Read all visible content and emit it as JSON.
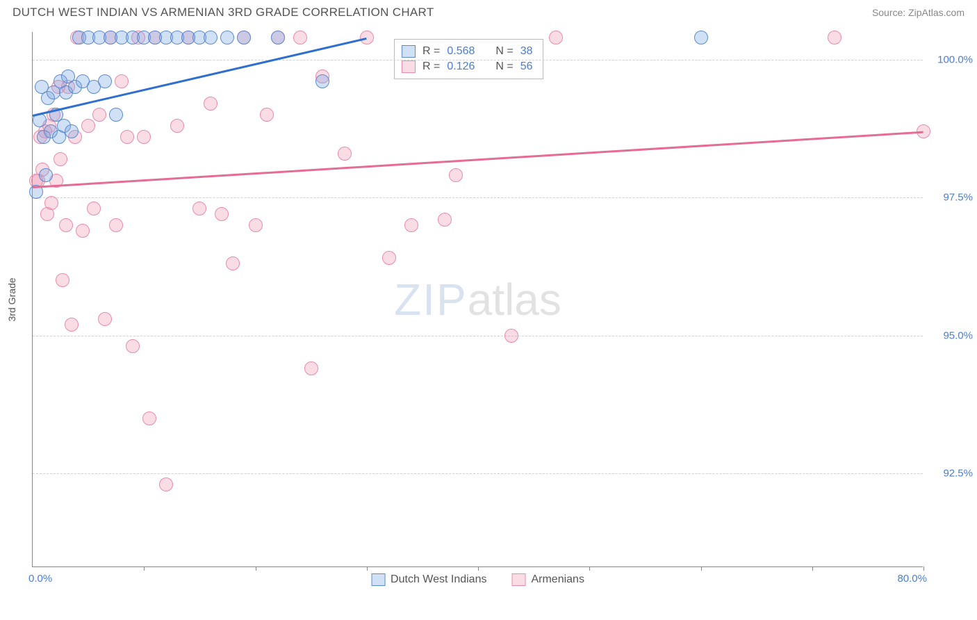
{
  "title": "DUTCH WEST INDIAN VS ARMENIAN 3RD GRADE CORRELATION CHART",
  "source": "Source: ZipAtlas.com",
  "watermark": {
    "part1": "ZIP",
    "part2": "atlas"
  },
  "ylabel": "3rd Grade",
  "chart": {
    "type": "scatter",
    "background_color": "#ffffff",
    "grid_color": "#d0d0d0",
    "axis_color": "#888888",
    "tick_label_color": "#4a7dd4",
    "xlim": [
      0,
      80
    ],
    "ylim": [
      90.8,
      100.5
    ],
    "x_tick_positions": [
      0,
      10,
      20,
      30,
      40,
      50,
      60,
      70,
      80
    ],
    "y_grid": [
      {
        "v": 100.0,
        "label": "100.0%"
      },
      {
        "v": 97.5,
        "label": "97.5%"
      },
      {
        "v": 95.0,
        "label": "95.0%"
      },
      {
        "v": 92.5,
        "label": "92.5%"
      }
    ],
    "x_min_label": "0.0%",
    "x_max_label": "80.0%",
    "marker_radius": 10,
    "marker_border_width": 1.2,
    "series": [
      {
        "name": "Dutch West Indians",
        "fill": "rgba(120,165,225,0.35)",
        "stroke": "#5b8bd0",
        "line_color": "#2f6fd0",
        "r_value": "0.568",
        "n_value": "38",
        "trend": {
          "x1": 0,
          "y1": 99.0,
          "x2": 30,
          "y2": 100.4
        },
        "points": [
          [
            0.3,
            97.6
          ],
          [
            0.6,
            98.9
          ],
          [
            0.8,
            99.5
          ],
          [
            1.0,
            98.6
          ],
          [
            1.2,
            97.9
          ],
          [
            1.4,
            99.3
          ],
          [
            1.6,
            98.7
          ],
          [
            1.9,
            99.4
          ],
          [
            2.1,
            99.0
          ],
          [
            2.4,
            98.6
          ],
          [
            2.5,
            99.6
          ],
          [
            2.8,
            98.8
          ],
          [
            3.0,
            99.4
          ],
          [
            3.2,
            99.7
          ],
          [
            3.5,
            98.7
          ],
          [
            3.8,
            99.5
          ],
          [
            4.2,
            100.4
          ],
          [
            4.5,
            99.6
          ],
          [
            5.0,
            100.4
          ],
          [
            5.5,
            99.5
          ],
          [
            6.0,
            100.4
          ],
          [
            6.5,
            99.6
          ],
          [
            7.0,
            100.4
          ],
          [
            7.5,
            99.0
          ],
          [
            8.0,
            100.4
          ],
          [
            9.0,
            100.4
          ],
          [
            10.0,
            100.4
          ],
          [
            11.0,
            100.4
          ],
          [
            12.0,
            100.4
          ],
          [
            13.0,
            100.4
          ],
          [
            14.0,
            100.4
          ],
          [
            15.0,
            100.4
          ],
          [
            16.0,
            100.4
          ],
          [
            17.5,
            100.4
          ],
          [
            19.0,
            100.4
          ],
          [
            22.0,
            100.4
          ],
          [
            26.0,
            99.6
          ],
          [
            60.0,
            100.4
          ]
        ]
      },
      {
        "name": "Armenians",
        "fill": "rgba(240,140,170,0.30)",
        "stroke": "#e98bab",
        "line_color": "#e56c94",
        "r_value": "0.126",
        "n_value": "56",
        "trend": {
          "x1": 0,
          "y1": 97.7,
          "x2": 80,
          "y2": 98.7
        },
        "points": [
          [
            0.3,
            97.8
          ],
          [
            0.5,
            97.8
          ],
          [
            0.7,
            98.6
          ],
          [
            0.9,
            98.0
          ],
          [
            1.1,
            98.7
          ],
          [
            1.3,
            97.2
          ],
          [
            1.5,
            98.8
          ],
          [
            1.7,
            97.4
          ],
          [
            1.9,
            99.0
          ],
          [
            2.1,
            97.8
          ],
          [
            2.3,
            99.5
          ],
          [
            2.5,
            98.2
          ],
          [
            2.7,
            96.0
          ],
          [
            3.0,
            97.0
          ],
          [
            3.2,
            99.5
          ],
          [
            3.5,
            95.2
          ],
          [
            3.8,
            98.6
          ],
          [
            4.0,
            100.4
          ],
          [
            4.5,
            96.9
          ],
          [
            5.0,
            98.8
          ],
          [
            5.5,
            97.3
          ],
          [
            6.0,
            99.0
          ],
          [
            6.5,
            95.3
          ],
          [
            7.0,
            100.4
          ],
          [
            7.5,
            97.0
          ],
          [
            8.0,
            99.6
          ],
          [
            8.5,
            98.6
          ],
          [
            9.0,
            94.8
          ],
          [
            9.5,
            100.4
          ],
          [
            10.0,
            98.6
          ],
          [
            10.5,
            93.5
          ],
          [
            11.0,
            100.4
          ],
          [
            12.0,
            92.3
          ],
          [
            13.0,
            98.8
          ],
          [
            14.0,
            100.4
          ],
          [
            15.0,
            97.3
          ],
          [
            16.0,
            99.2
          ],
          [
            17.0,
            97.2
          ],
          [
            18.0,
            96.3
          ],
          [
            19.0,
            100.4
          ],
          [
            20.0,
            97.0
          ],
          [
            21.0,
            99.0
          ],
          [
            22.0,
            100.4
          ],
          [
            24.0,
            100.4
          ],
          [
            25.0,
            94.4
          ],
          [
            26.0,
            99.7
          ],
          [
            28.0,
            98.3
          ],
          [
            30.0,
            100.4
          ],
          [
            32.0,
            96.4
          ],
          [
            34.0,
            97.0
          ],
          [
            37.0,
            97.1
          ],
          [
            38.0,
            97.9
          ],
          [
            43.0,
            95.0
          ],
          [
            47.0,
            100.4
          ],
          [
            72.0,
            100.4
          ],
          [
            80.0,
            98.7
          ]
        ]
      }
    ]
  },
  "legend_box": {
    "r_label": "R =",
    "n_label": "N ="
  },
  "bottom_legend": {
    "s1": "Dutch West Indians",
    "s2": "Armenians"
  }
}
